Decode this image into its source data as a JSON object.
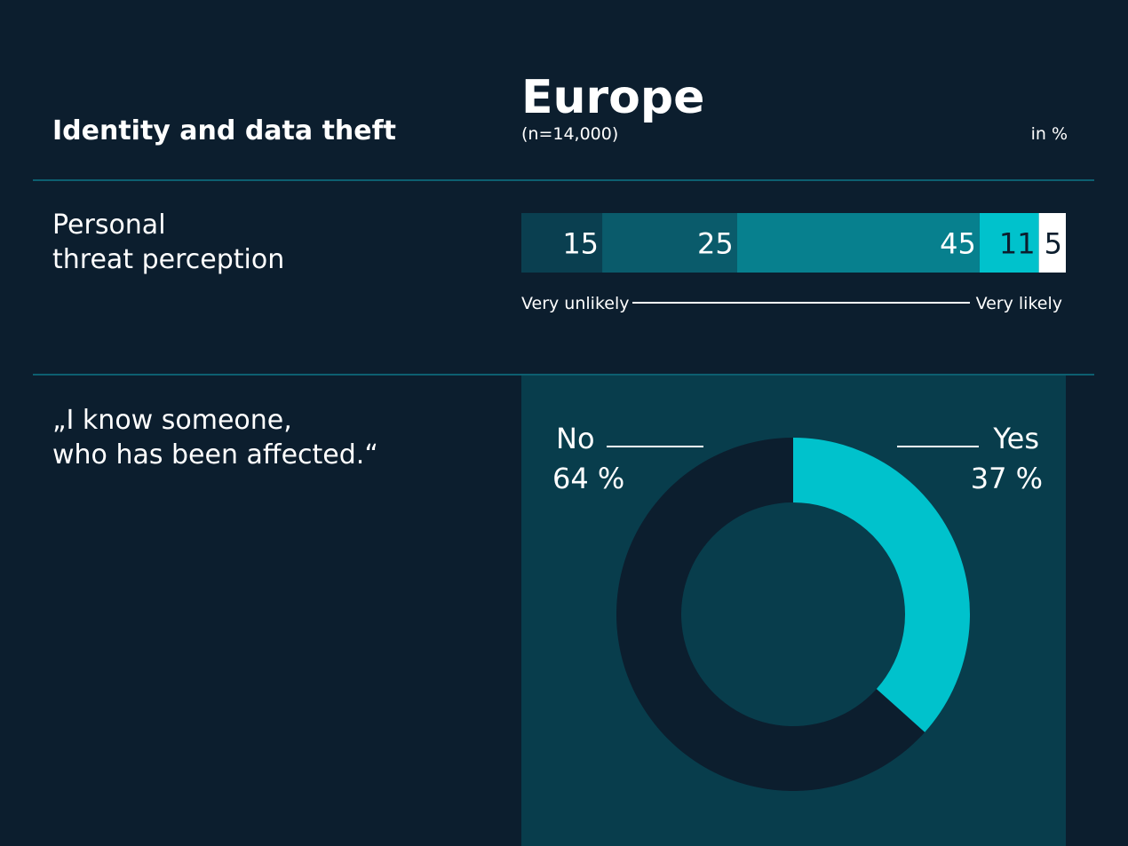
{
  "header": {
    "title": "Identity and data theft",
    "region": "Europe",
    "sample": "(n=14,000)",
    "unit": "in %"
  },
  "chart_data": [
    {
      "type": "stacked_bar",
      "title_lines": [
        "Personal",
        "threat perception"
      ],
      "values": [
        15,
        25,
        45,
        11,
        5
      ],
      "colors": [
        "#0a3f50",
        "#0a5b6b",
        "#07808e",
        "#00c2cc",
        "#ffffff"
      ],
      "label_colors": [
        "#ffffff",
        "#ffffff",
        "#ffffff",
        "#0c1e2e",
        "#0c1e2e"
      ],
      "scale_low": "Very unlikely",
      "scale_high": "Very likely"
    },
    {
      "type": "donut",
      "title_lines": [
        "„I know someone,",
        "who has been affected.“"
      ],
      "categories": [
        "Yes",
        "No"
      ],
      "values": [
        37,
        64
      ],
      "value_labels": [
        "37 %",
        "64 %"
      ],
      "colors": [
        "#00c2cc",
        "#0c1e2e"
      ]
    }
  ]
}
